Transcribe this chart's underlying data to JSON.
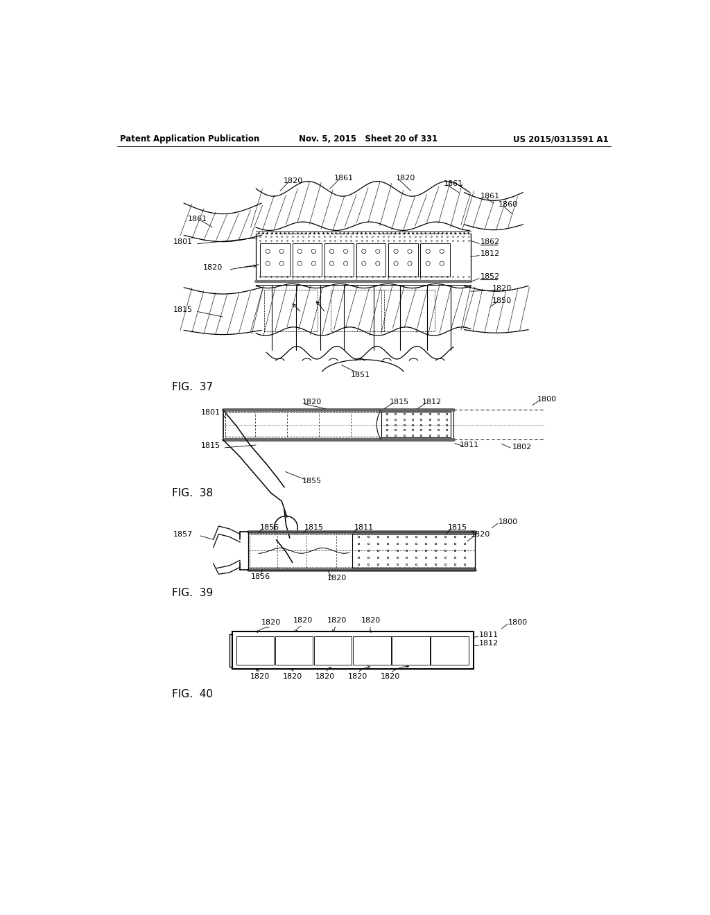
{
  "bg_color": "#ffffff",
  "text_color": "#000000",
  "header_left": "Patent Application Publication",
  "header_mid": "Nov. 5, 2015   Sheet 20 of 331",
  "header_right": "US 2015/0313591 A1",
  "fig37_label": "FIG.  37",
  "fig38_label": "FIG.  38",
  "fig39_label": "FIG.  39",
  "fig40_label": "FIG.  40",
  "line_color": "#000000",
  "gray_color": "#888888"
}
